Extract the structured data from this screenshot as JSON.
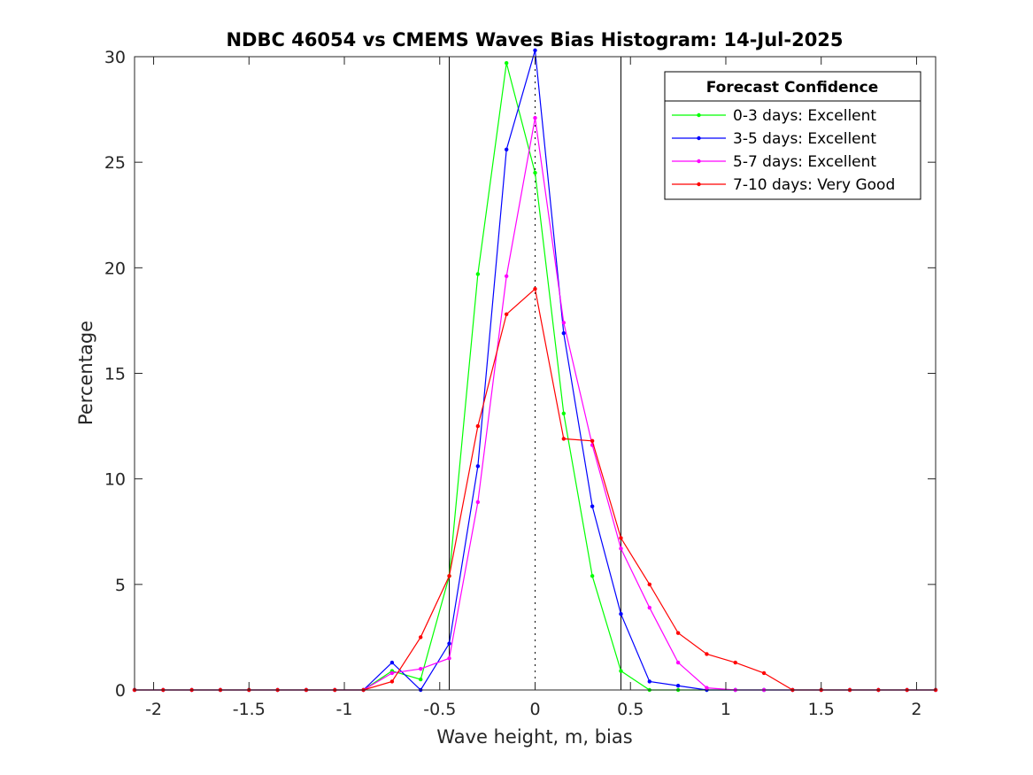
{
  "chart_data": {
    "type": "line",
    "title": "NDBC 46054 vs CMEMS Waves Bias Histogram: 14-Jul-2025",
    "xlabel": "Wave height, m, bias",
    "ylabel": "Percentage",
    "xlim": [
      -2.1,
      2.1
    ],
    "ylim": [
      0,
      30
    ],
    "xticks": [
      -2,
      -1.5,
      -1,
      -0.5,
      0,
      0.5,
      1,
      1.5,
      2
    ],
    "xtick_labels": [
      "-2",
      "-1.5",
      "-1",
      "-0.5",
      "0",
      "0.5",
      "1",
      "1.5",
      "2"
    ],
    "yticks": [
      0,
      5,
      10,
      15,
      20,
      25,
      30
    ],
    "ytick_labels": [
      "0",
      "5",
      "10",
      "15",
      "20",
      "25",
      "30"
    ],
    "vertical_lines": [
      -0.45,
      0.45
    ],
    "zero_line": 0,
    "grid": false,
    "legend": {
      "title": "Forecast Confidence",
      "position": "top-right"
    },
    "x": [
      -2.1,
      -1.95,
      -1.8,
      -1.65,
      -1.5,
      -1.35,
      -1.2,
      -1.05,
      -0.9,
      -0.75,
      -0.6,
      -0.45,
      -0.3,
      -0.15,
      0,
      0.15,
      0.3,
      0.45,
      0.6,
      0.75,
      0.9,
      1.05,
      1.2,
      1.35,
      1.5,
      1.65,
      1.8,
      1.95,
      2.1
    ],
    "series": [
      {
        "name": "0-3 days: Excellent",
        "color": "#00ff00",
        "values": [
          0,
          0,
          0,
          0,
          0,
          0,
          0,
          0,
          0,
          0.9,
          0.5,
          5.4,
          19.7,
          29.7,
          24.5,
          13.1,
          5.4,
          0.9,
          0,
          0,
          0,
          0,
          0,
          0,
          0,
          0,
          0,
          0,
          0
        ]
      },
      {
        "name": "3-5 days: Excellent",
        "color": "#0000ff",
        "values": [
          0,
          0,
          0,
          0,
          0,
          0,
          0,
          0,
          0,
          1.3,
          0,
          2.2,
          10.6,
          25.6,
          30.3,
          16.9,
          8.7,
          3.6,
          0.4,
          0.2,
          0,
          0,
          0,
          0,
          0,
          0,
          0,
          0,
          0
        ]
      },
      {
        "name": "5-7 days: Excellent",
        "color": "#ff00ff",
        "values": [
          0,
          0,
          0,
          0,
          0,
          0,
          0,
          0,
          0,
          0.8,
          1.0,
          1.5,
          8.9,
          19.6,
          27.1,
          17.4,
          11.6,
          6.7,
          3.9,
          1.3,
          0.1,
          0,
          0,
          0,
          0,
          0,
          0,
          0,
          0
        ]
      },
      {
        "name": "7-10 days: Very Good",
        "color": "#ff0000",
        "values": [
          0,
          0,
          0,
          0,
          0,
          0,
          0,
          0,
          0,
          0.4,
          2.5,
          5.4,
          12.5,
          17.8,
          19.0,
          11.9,
          11.8,
          7.2,
          5.0,
          2.7,
          1.7,
          1.3,
          0.8,
          0,
          0,
          0,
          0,
          0,
          0
        ]
      }
    ]
  }
}
